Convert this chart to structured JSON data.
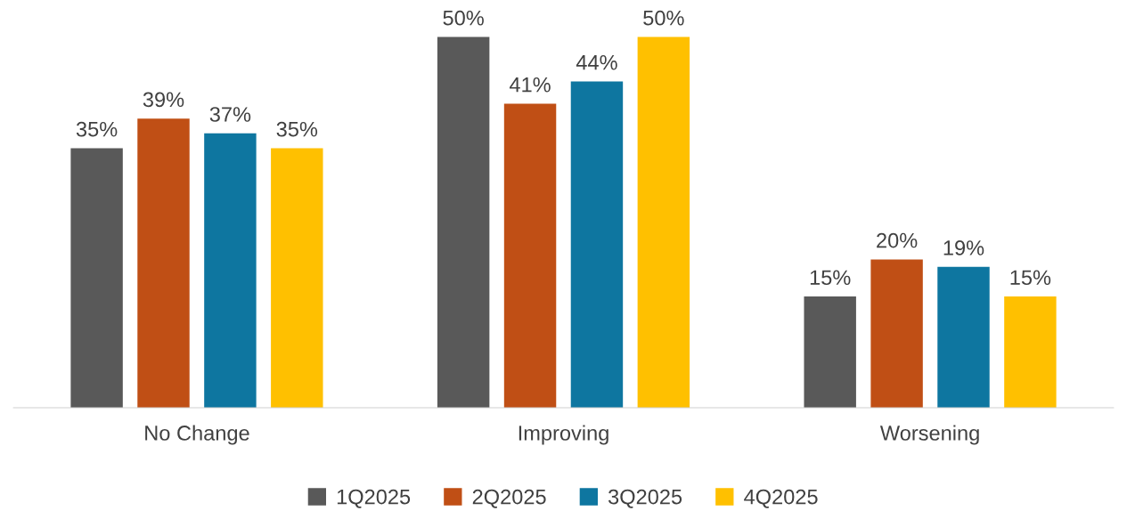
{
  "chart_data": {
    "type": "bar",
    "categories": [
      "No Change",
      "Improving",
      "Worsening"
    ],
    "series": [
      {
        "name": "1Q2025",
        "color": "#595959",
        "values": [
          35,
          50,
          15
        ],
        "value_labels": [
          "35%",
          "50%",
          "15%"
        ]
      },
      {
        "name": "2Q2025",
        "color": "#c04f15",
        "values": [
          39,
          41,
          20
        ],
        "value_labels": [
          "39%",
          "41%",
          "20%"
        ]
      },
      {
        "name": "3Q2025",
        "color": "#0e76a0",
        "values": [
          37,
          44,
          19
        ],
        "value_labels": [
          "37%",
          "44%",
          "19%"
        ]
      },
      {
        "name": "4Q2025",
        "color": "#ffc000",
        "values": [
          35,
          50,
          15
        ],
        "value_labels": [
          "35%",
          "50%",
          "15%"
        ]
      }
    ],
    "legend": "bottom"
  }
}
